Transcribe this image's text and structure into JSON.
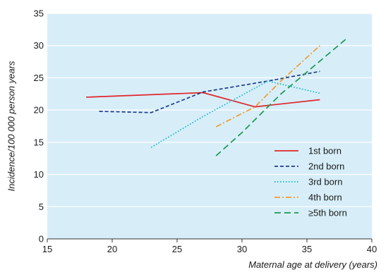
{
  "chart_data": {
    "type": "line",
    "xlabel": "Maternal age at delivery (years)",
    "ylabel": "Incidence/100 000 person years",
    "xlim": [
      15,
      40
    ],
    "ylim": [
      0,
      35
    ],
    "xticks": [
      15,
      20,
      25,
      30,
      35,
      40
    ],
    "yticks": [
      0,
      5,
      10,
      15,
      20,
      25,
      30,
      35
    ],
    "grid": "horizontal",
    "legend_position": "bottom-right",
    "background": "#d7eef9",
    "series": [
      {
        "name": "1st born",
        "color": "#e0262b",
        "dash": "solid",
        "x": [
          18,
          27,
          31,
          36
        ],
        "y": [
          22.0,
          22.7,
          20.5,
          21.6
        ]
      },
      {
        "name": "2nd born",
        "color": "#1e3a8c",
        "dash": "dash",
        "x": [
          19,
          23,
          27,
          32,
          36
        ],
        "y": [
          19.8,
          19.6,
          22.8,
          24.5,
          26.0
        ]
      },
      {
        "name": "3rd born",
        "color": "#19b5c8",
        "dash": "dot",
        "x": [
          23,
          27,
          32,
          36
        ],
        "y": [
          14.2,
          19.0,
          24.5,
          22.6
        ]
      },
      {
        "name": "4th born",
        "color": "#f39a2e",
        "dash": "dashdot",
        "x": [
          28,
          31,
          33,
          36
        ],
        "y": [
          17.4,
          20.5,
          24.5,
          30.0
        ]
      },
      {
        "name": "≥5th born",
        "color": "#1a9950",
        "dash": "longdash",
        "x": [
          28,
          30,
          33,
          38
        ],
        "y": [
          12.9,
          16.5,
          22.5,
          31.0
        ]
      }
    ]
  }
}
